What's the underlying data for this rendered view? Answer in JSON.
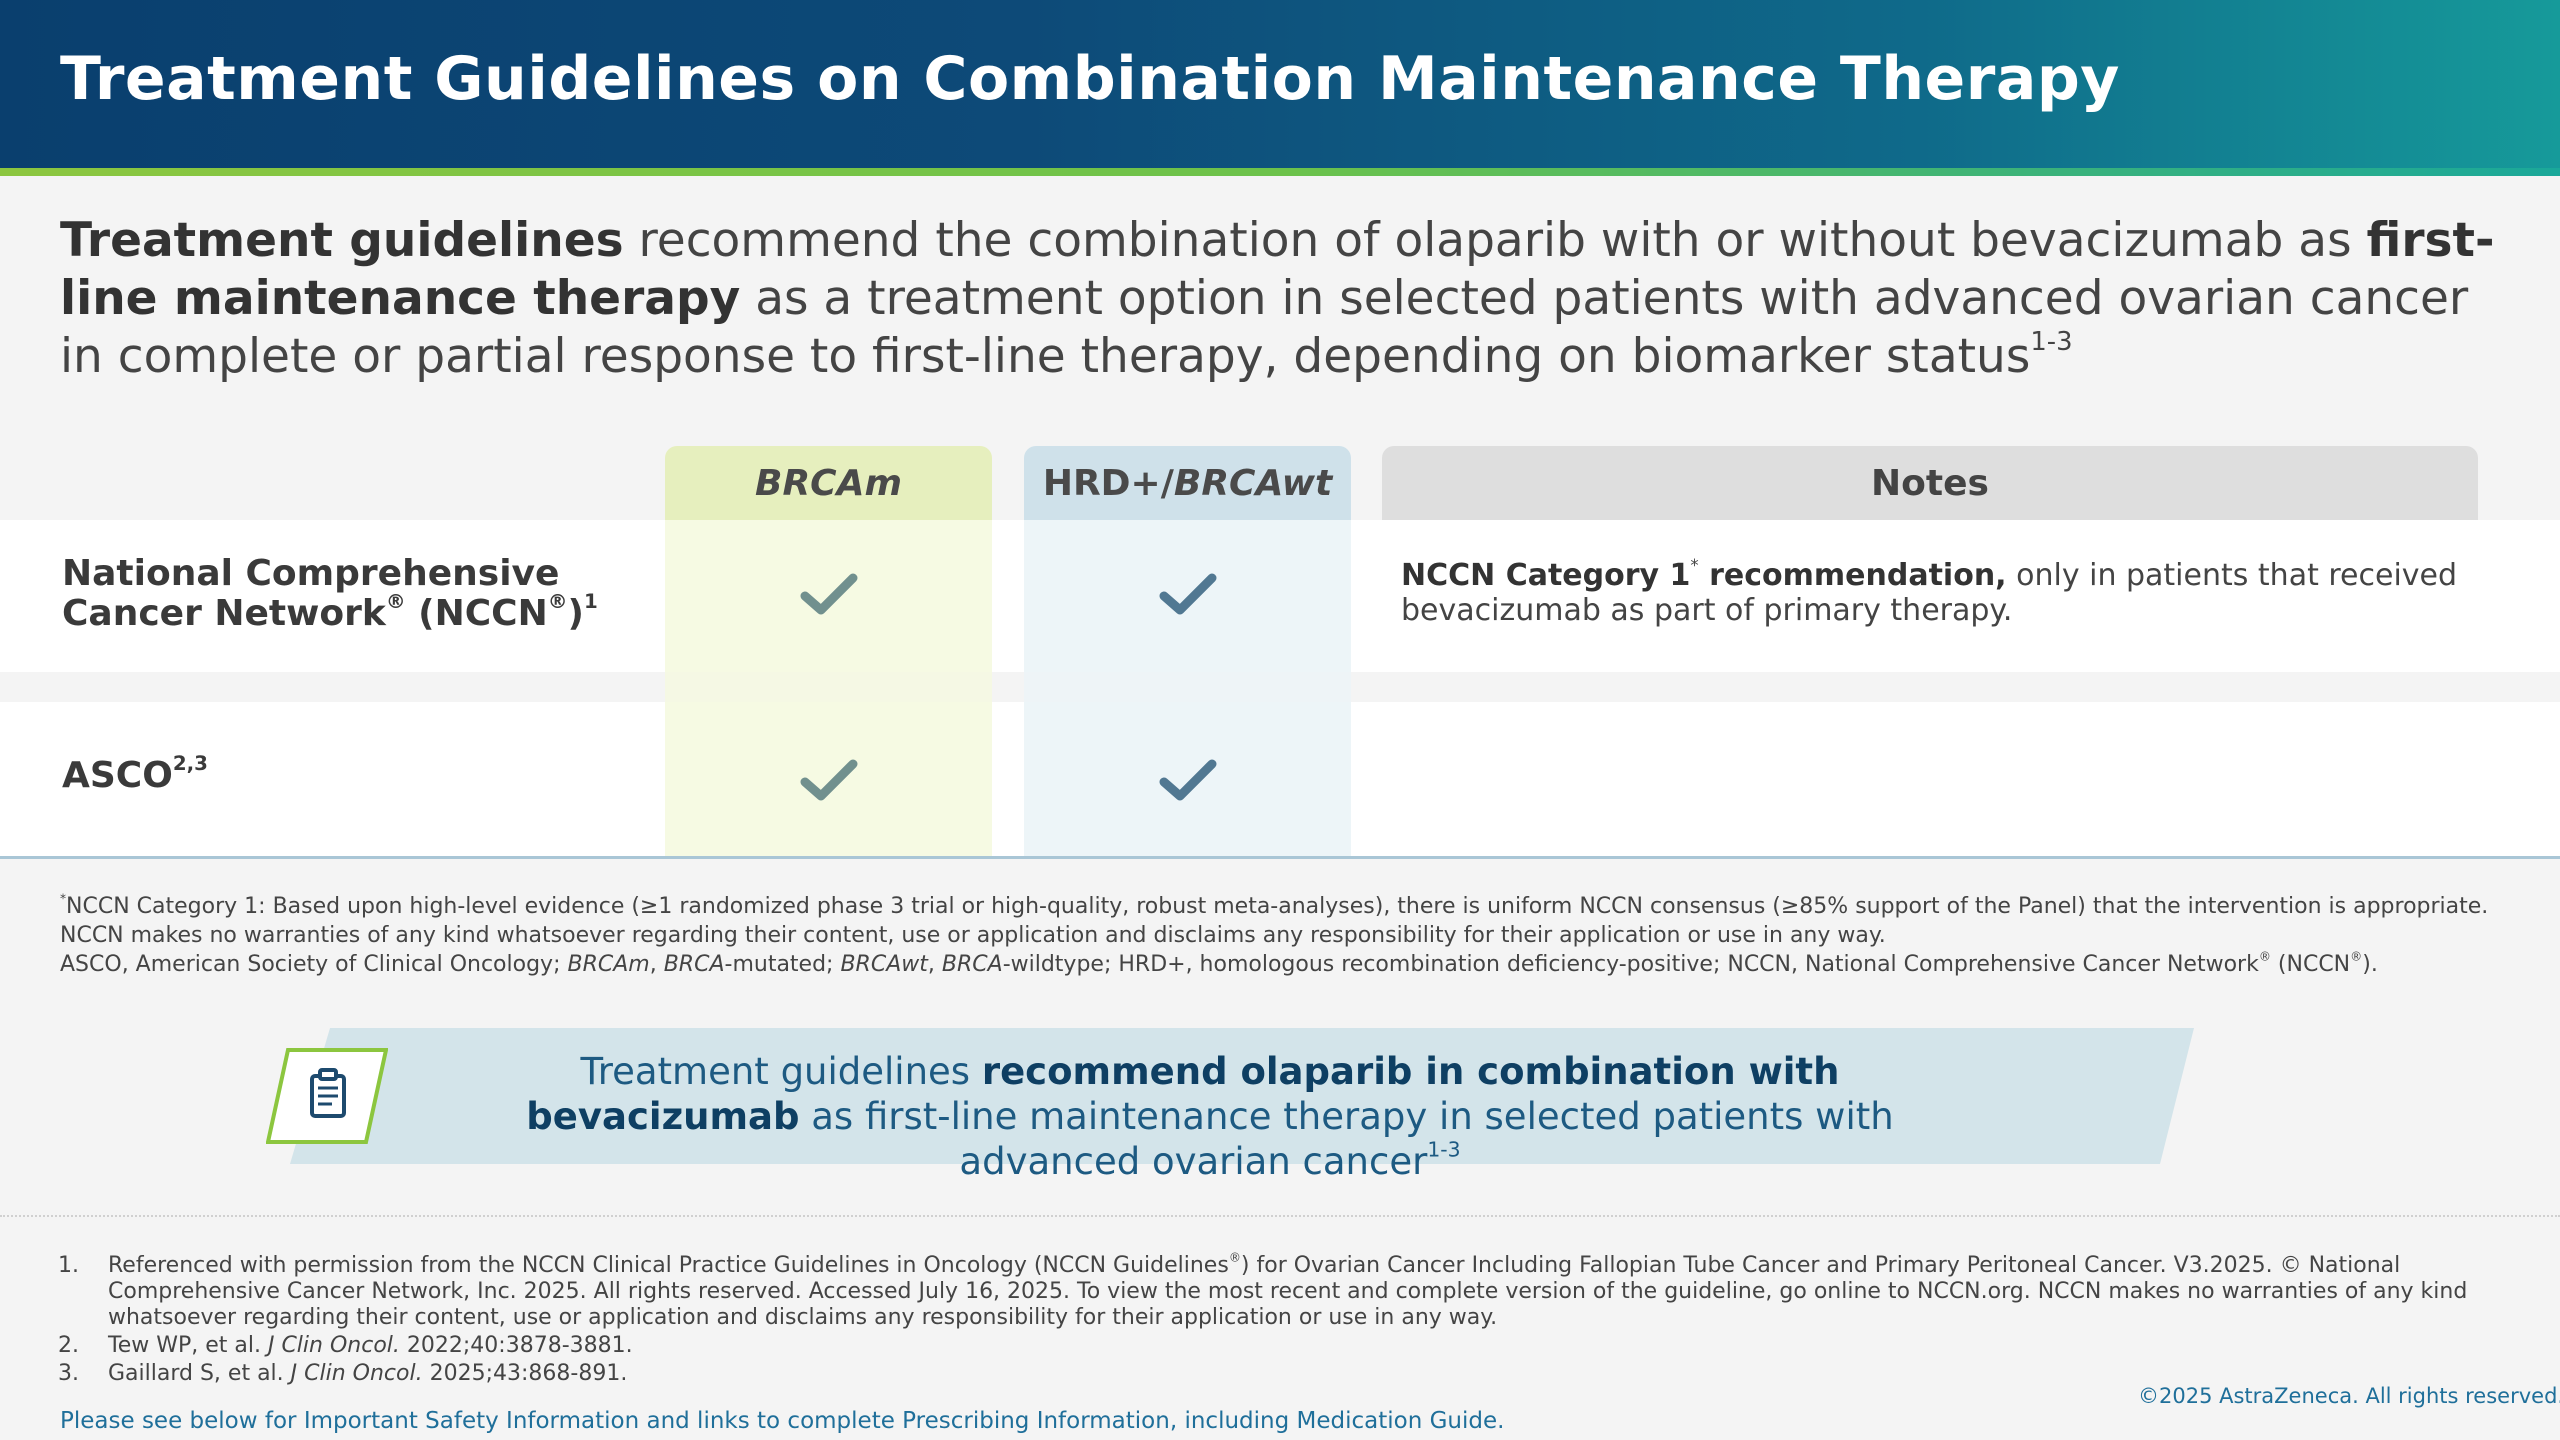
{
  "header": {
    "title": "Treatment Guidelines on Combination Maintenance Therapy"
  },
  "intro": {
    "bold1": "Treatment guidelines",
    "text1": " recommend the combination of olaparib with or without bevacizumab as ",
    "bold2": "first-line maintenance therapy",
    "text2": " as a treatment option in selected patients with advanced ovarian cancer in complete or partial response to first-line therapy, depending on biomarker status",
    "sup": "1-3"
  },
  "table": {
    "columns": {
      "brcam": "BRCAm",
      "hrd_prefix": "HRD+/",
      "hrd_italic": "BRCAwt",
      "notes": "Notes"
    },
    "rows": [
      {
        "label_line1": "National Comprehensive",
        "label_line2": "Cancer Network",
        "label_reg1": "®",
        "label_mid": " (NCCN",
        "label_reg2": "®",
        "label_end": ")",
        "label_sup": "1",
        "brcam": "check",
        "hrd": "check",
        "note_bold": "NCCN Category 1",
        "note_sup": "*",
        "note_bold2": " recommendation,",
        "note_text": " only in patients that received bevacizumab as part of primary therapy."
      },
      {
        "label": "ASCO",
        "label_sup": "2,3",
        "brcam": "check",
        "hrd": "check"
      }
    ]
  },
  "table_footnotes": {
    "line1_star": "*",
    "line1": "NCCN Category 1: Based upon high-level evidence (≥1 randomized phase 3 trial or high-quality, robust meta-analyses), there is uniform NCCN consensus (≥85% support of the Panel) that the intervention is appropriate.",
    "line2": "NCCN makes no warranties of any kind whatsoever regarding their content, use or application and disclaims any responsibility for their application or use in any way.",
    "line3_a": "ASCO, American Society of Clinical Oncology; ",
    "line3_b": "BRCAm",
    "line3_c": ", ",
    "line3_d": "BRCA",
    "line3_e": "-mutated; ",
    "line3_f": "BRCAwt",
    "line3_g": ", ",
    "line3_h": "BRCA",
    "line3_i": "-wildtype; HRD+, homologous recombination deficiency-positive; NCCN, National Comprehensive Cancer Network",
    "line3_reg1": "®",
    "line3_j": " (NCCN",
    "line3_reg2": "®",
    "line3_k": ")."
  },
  "callout": {
    "icon": "clipboard-icon",
    "text1": "Treatment guidelines ",
    "bold": "recommend olaparib in combination with bevacizumab",
    "text2": " as first-line maintenance therapy in selected patients with advanced ovarian cancer",
    "sup": "1-3"
  },
  "references": [
    {
      "num": "1.",
      "text_a": "Referenced with permission from the NCCN Clinical Practice Guidelines in Oncology (NCCN Guidelines",
      "reg": "®",
      "text_b": ") for Ovarian Cancer Including Fallopian Tube Cancer and Primary Peritoneal Cancer. V3.2025. © National Comprehensive Cancer Network, Inc. 2025. All rights reserved. Accessed July 16, 2025. To view the most recent and complete version of the guideline, go online to NCCN.org. NCCN makes no warranties of any kind whatsoever regarding their content, use or application and disclaims any responsibility for their application or use in any way."
    },
    {
      "num": "2.",
      "author": "Tew WP, et al. ",
      "journal": "J Clin Oncol.",
      "cite": " 2022;40:3878-3881."
    },
    {
      "num": "3.",
      "author": "Gaillard S, et al. ",
      "journal": "J Clin Oncol.",
      "cite": " 2025;43:868-891."
    }
  ],
  "isi_link": "Please see below for Important Safety Information and links to complete Prescribing Information, including Medication Guide.",
  "copyright": "©2025 AstraZeneca. All rights reserved.",
  "colors": {
    "header_dark": "#0a3f6e",
    "header_teal": "#169a9a",
    "stripe_green": "#8cc63f",
    "check_navy": "#0e3f63",
    "callout_bg": "#d3e4ea",
    "link_blue": "#1f6f9a"
  }
}
